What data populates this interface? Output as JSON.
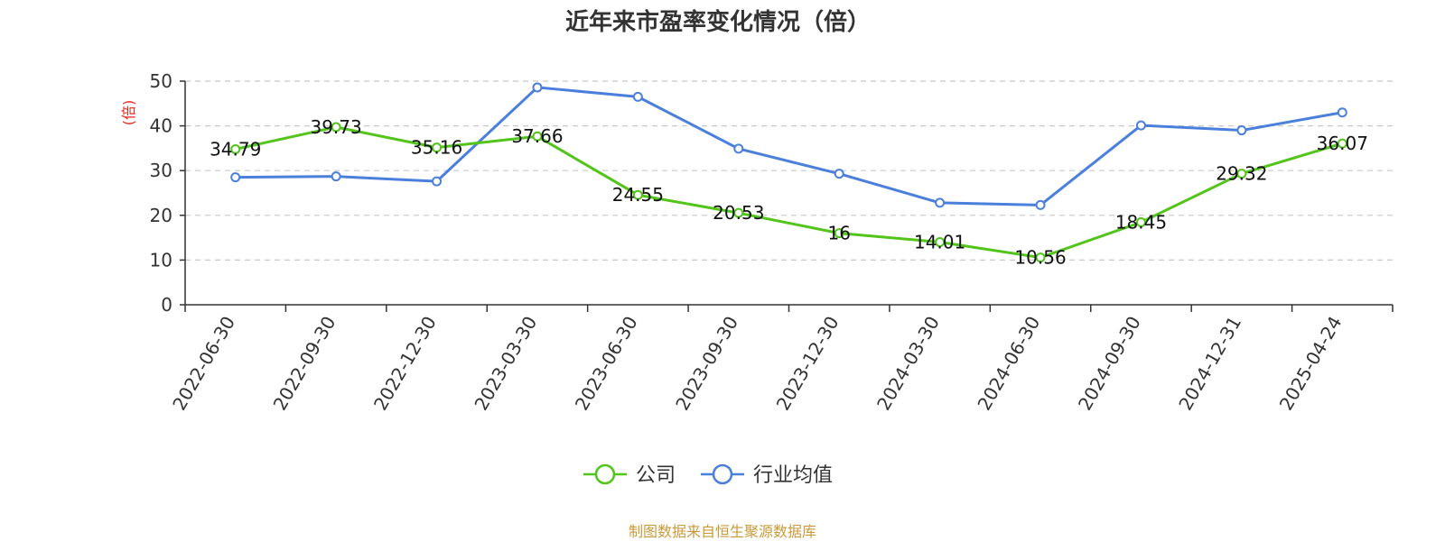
{
  "chart_data": {
    "type": "line",
    "title": "近年来市盈率变化情况（倍）",
    "ylabel": "(倍)",
    "xlabel": "",
    "ylim": [
      0,
      50
    ],
    "yticks": [
      0,
      10,
      20,
      30,
      40,
      50
    ],
    "grid": true,
    "legend_position": "bottom-center",
    "categories": [
      "2022-06-30",
      "2022-09-30",
      "2022-12-30",
      "2023-03-30",
      "2023-06-30",
      "2023-09-30",
      "2023-12-30",
      "2024-03-30",
      "2024-06-30",
      "2024-09-30",
      "2024-12-31",
      "2025-04-24"
    ],
    "series": [
      {
        "name": "公司",
        "color": "#52c41a",
        "show_labels": true,
        "values": [
          34.79,
          39.73,
          35.16,
          37.66,
          24.55,
          20.53,
          16,
          14.01,
          10.56,
          18.45,
          29.32,
          36.07
        ],
        "labels": [
          "34.79",
          "39.73",
          "35.16",
          "37.66",
          "24.55",
          "20.53",
          "16",
          "14.01",
          "10.56",
          "18.45",
          "29.32",
          "36.07"
        ]
      },
      {
        "name": "行业均值",
        "color": "#4a7fdc",
        "show_labels": false,
        "values": [
          28.5,
          28.7,
          27.6,
          48.6,
          46.5,
          34.9,
          29.3,
          22.8,
          22.3,
          40.1,
          39.0,
          43.0
        ]
      }
    ],
    "source": "制图数据来自恒生聚源数据库"
  }
}
